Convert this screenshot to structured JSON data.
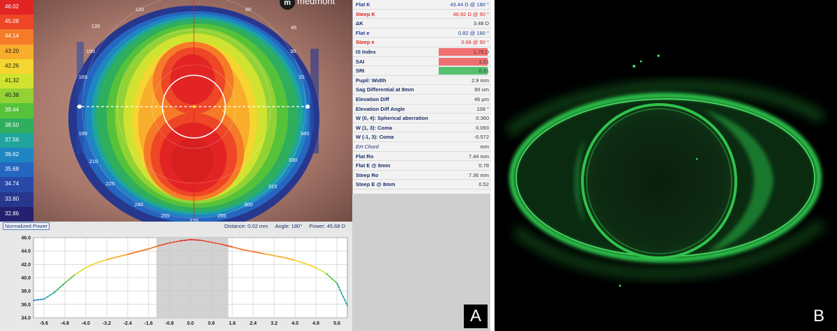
{
  "colors": {
    "flat": "#1c3f9a",
    "steep": "#e02020",
    "fluor": "#33dd55",
    "highlight_red": "#f07070",
    "highlight_green": "#55c070"
  },
  "topo": {
    "brand": "medmont",
    "scale": [
      {
        "value": "46.02",
        "color": "#e32424"
      },
      {
        "value": "45.08",
        "color": "#ee4626"
      },
      {
        "value": "44.14",
        "color": "#f57b28"
      },
      {
        "value": "43.20",
        "color": "#f9ad2c"
      },
      {
        "value": "42.26",
        "color": "#f5d530"
      },
      {
        "value": "41.32",
        "color": "#d0e331"
      },
      {
        "value": "40.38",
        "color": "#93d235"
      },
      {
        "value": "39.44",
        "color": "#56c23a"
      },
      {
        "value": "38.50",
        "color": "#2fae5d"
      },
      {
        "value": "37.56",
        "color": "#1fa59d"
      },
      {
        "value": "36.62",
        "color": "#1f86c3"
      },
      {
        "value": "35.68",
        "color": "#2566c0"
      },
      {
        "value": "34.74",
        "color": "#2849a8"
      },
      {
        "value": "33.80",
        "color": "#27378e"
      },
      {
        "value": "32.86",
        "color": "#241f6f"
      }
    ],
    "angles": [
      "120",
      "60",
      "135",
      "45",
      "150",
      "30",
      "165",
      "15",
      "195",
      "345",
      "210",
      "330",
      "225",
      "315",
      "240",
      "300",
      "255",
      "285",
      "270"
    ],
    "footer": {
      "mode": "Normalized Power",
      "distance": "Distance: 0.02 mm",
      "angle": "Angle: 180°",
      "power": "Power: 45.68 D"
    }
  },
  "params": [
    {
      "label": "Flat K",
      "value": "43.44 D @ 180 °",
      "style": "flat"
    },
    {
      "label": "Steep K",
      "value": "46.92 D @ 90 °",
      "style": "steep"
    },
    {
      "label": "ΔK",
      "value": "3.48 D",
      "style": "normal"
    },
    {
      "label": "Flat e",
      "value": "0.82 @ 180 °",
      "style": "flat"
    },
    {
      "label": "Steep e",
      "value": "0.68 @ 90 °",
      "style": "steep"
    },
    {
      "label": "IS Index",
      "value": "1.76 D",
      "style": "red"
    },
    {
      "label": "SAI",
      "value": "1.21",
      "style": "red"
    },
    {
      "label": "SRI",
      "value": "0.31",
      "style": "green"
    },
    {
      "label": "Pupil: Width",
      "value": "2.9 mm",
      "style": "normal"
    },
    {
      "label": "Sag Differential at 8mm",
      "value": "90 um",
      "style": "normal"
    },
    {
      "label": "Elevation Diff",
      "value": "46 µm",
      "style": "normal"
    },
    {
      "label": "Elevation Diff Angle",
      "value": "108 °",
      "style": "normal"
    },
    {
      "label": "W (0, 4): Spherical aberration",
      "value": "0.360",
      "style": "normal"
    },
    {
      "label": "W (1, 3): Coma",
      "value": "0.093",
      "style": "normal"
    },
    {
      "label": "W (-1, 3): Coma",
      "value": "-0.572",
      "style": "normal"
    },
    {
      "label": "EH Chord",
      "value": "mm",
      "style": "italic"
    },
    {
      "label": "Flat Ro",
      "value": "7.44 mm",
      "style": "normal"
    },
    {
      "label": "Flat E @ 8mm",
      "value": "0.78",
      "style": "normal"
    },
    {
      "label": "Steep Ro",
      "value": "7.36 mm",
      "style": "normal"
    },
    {
      "label": "Steep E @ 8mm",
      "value": "0.52",
      "style": "normal"
    }
  ],
  "chart_data": {
    "type": "line",
    "x": [
      -6.0,
      -5.6,
      -5.2,
      -4.8,
      -4.4,
      -4.0,
      -3.6,
      -3.2,
      -2.8,
      -2.4,
      -2.0,
      -1.6,
      -1.2,
      -0.8,
      -0.4,
      0.0,
      0.4,
      0.8,
      1.2,
      1.6,
      2.0,
      2.4,
      2.8,
      3.2,
      3.6,
      4.0,
      4.4,
      4.8,
      5.2,
      5.6,
      6.0
    ],
    "y": [
      36.6,
      36.8,
      37.8,
      39.2,
      40.5,
      41.5,
      42.2,
      42.7,
      43.1,
      43.5,
      43.9,
      44.3,
      44.8,
      45.2,
      45.5,
      45.7,
      45.6,
      45.3,
      45.0,
      44.6,
      44.2,
      43.9,
      43.6,
      43.3,
      43.0,
      42.6,
      42.1,
      41.5,
      40.6,
      39.2,
      35.8
    ],
    "xticks": [
      "-5.6",
      "-4.8",
      "-4.0",
      "-3.2",
      "-2.4",
      "-1.6",
      "-0.8",
      "0.0",
      "0.8",
      "1.6",
      "2.4",
      "3.2",
      "4.0",
      "4.8",
      "5.6"
    ],
    "yticks": [
      "34.0",
      "36.0",
      "38.0",
      "40.0",
      "42.0",
      "44.0",
      "46.0"
    ],
    "xlim": [
      -6.0,
      6.0
    ],
    "ylim": [
      34.0,
      46.0
    ],
    "shaded_x": [
      -1.3,
      1.45
    ],
    "grid": true,
    "title": "",
    "xlabel": "",
    "ylabel": ""
  },
  "panels": {
    "a": "A",
    "b": "B"
  }
}
